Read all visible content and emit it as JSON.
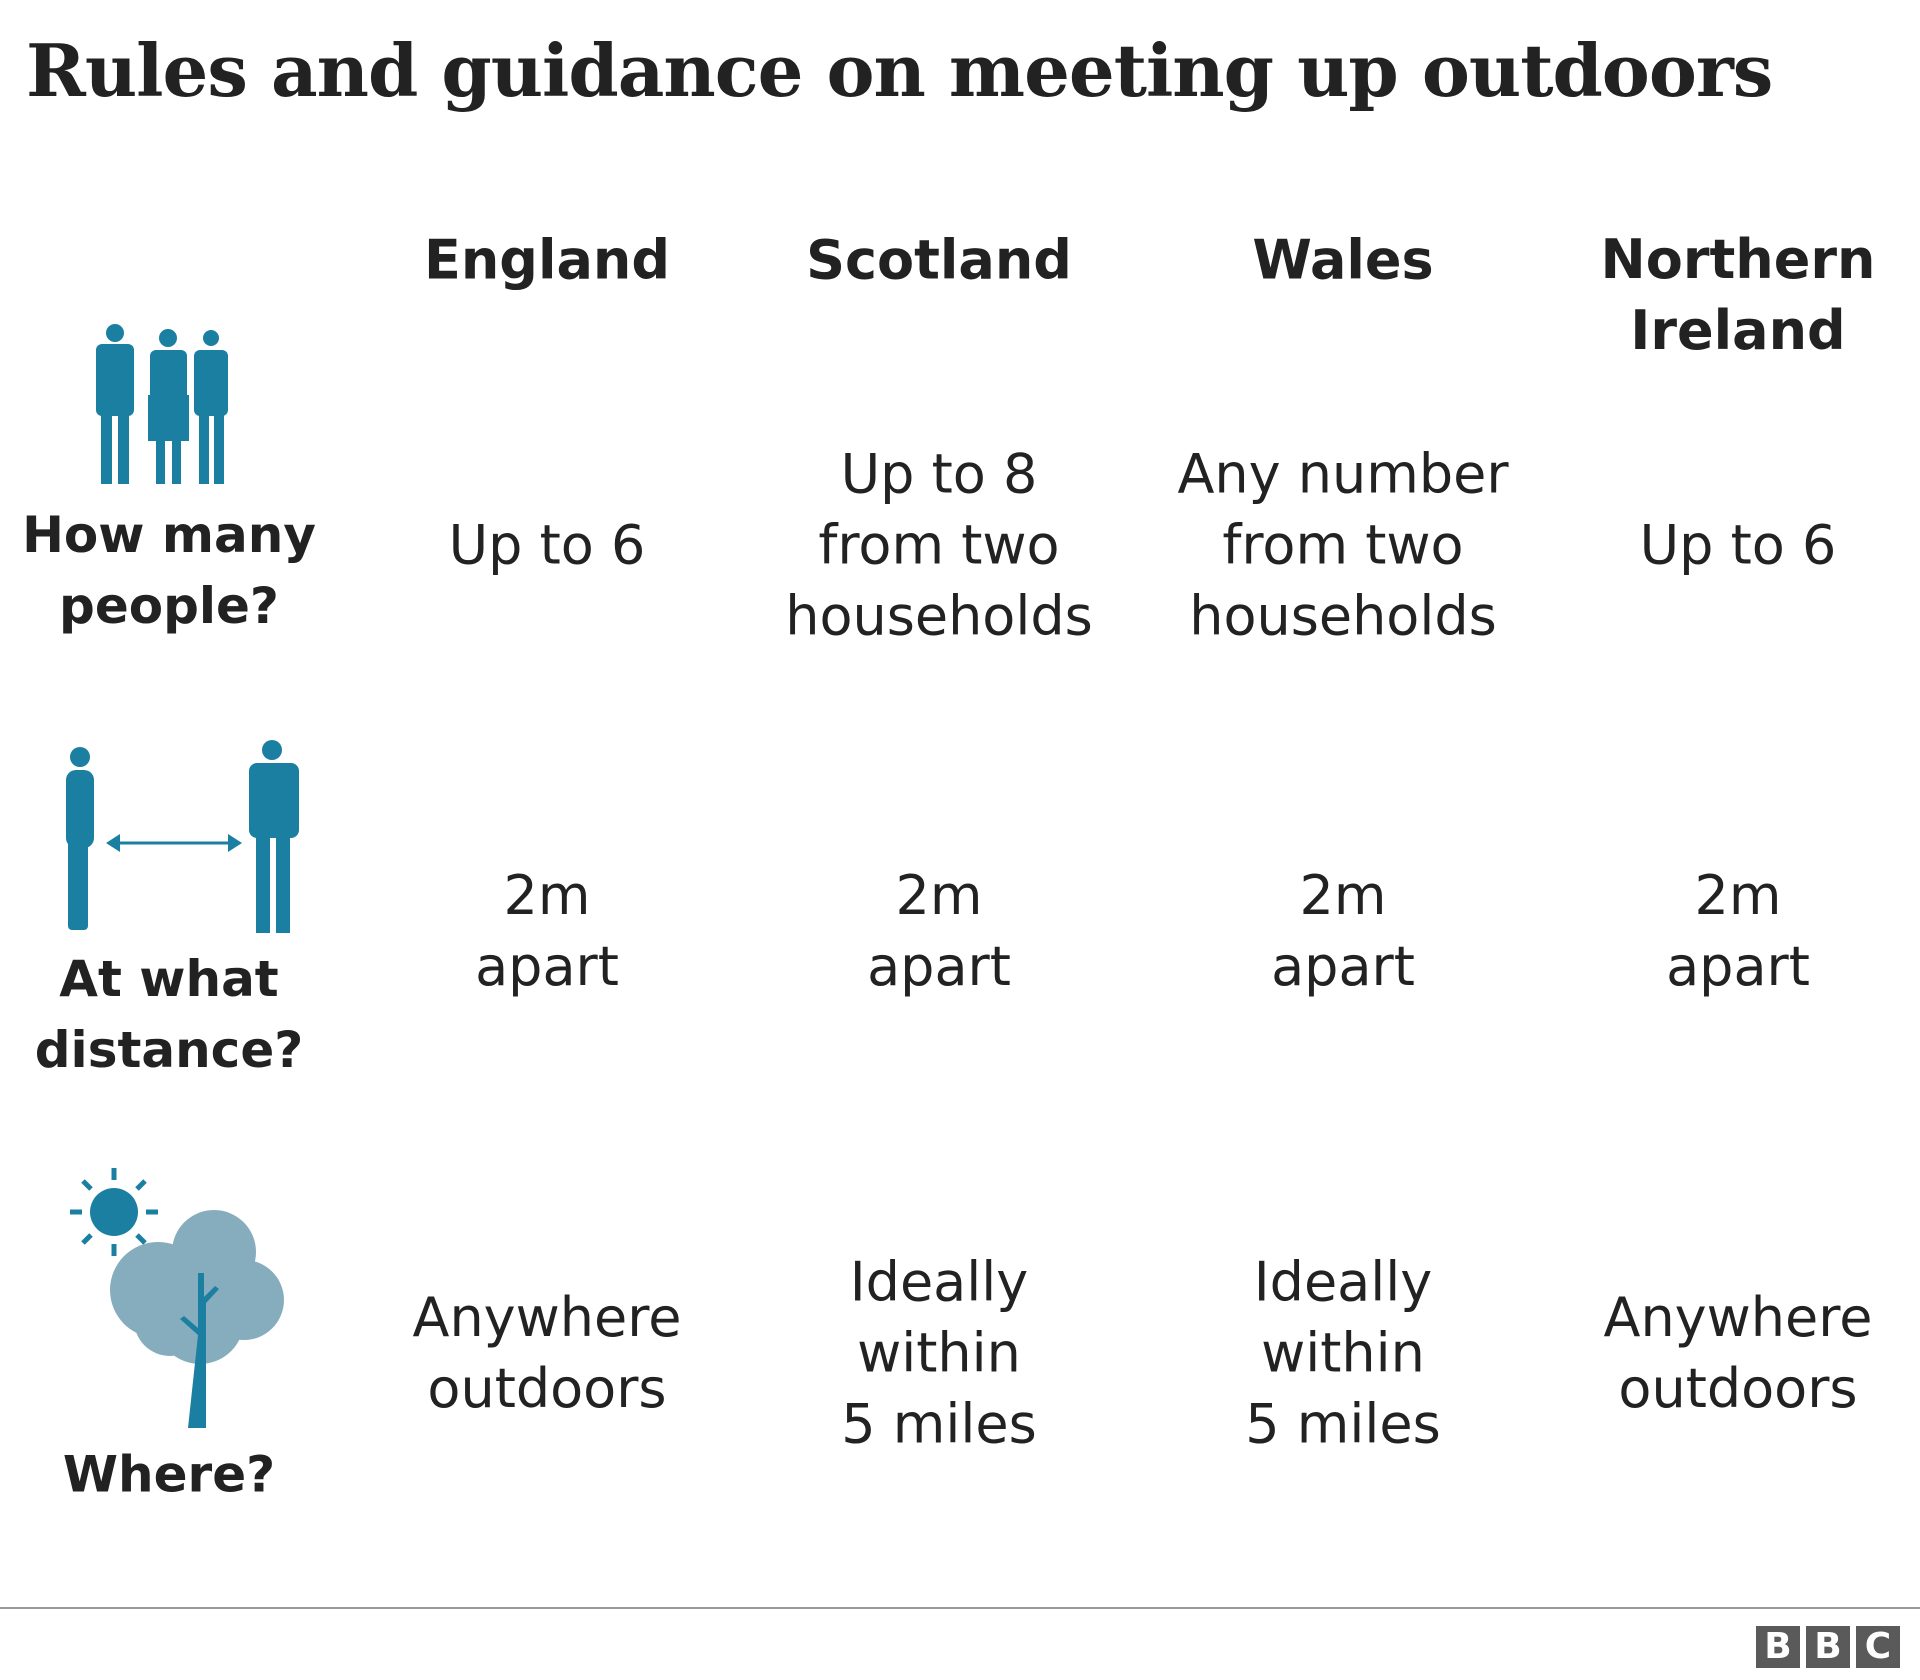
{
  "title": "Rules and guidance on meeting up outdoors",
  "columns": [
    "England",
    "Scotland",
    "Wales",
    [
      "Northern",
      "Ireland"
    ]
  ],
  "rows": [
    {
      "label": [
        "How many",
        "people?"
      ],
      "cells": [
        [
          "Up to 6"
        ],
        [
          "Up to 8",
          "from two",
          "households"
        ],
        [
          "Any number",
          "from two",
          "households"
        ],
        [
          "Up to 6"
        ]
      ]
    },
    {
      "label": [
        "At what",
        "distance?"
      ],
      "cells": [
        [
          "2m",
          "apart"
        ],
        [
          "2m",
          "apart"
        ],
        [
          "2m",
          "apart"
        ],
        [
          "2m",
          "apart"
        ]
      ]
    },
    {
      "label": [
        "Where?"
      ],
      "cells": [
        [
          "Anywhere",
          "outdoors"
        ],
        [
          "Ideally",
          "within",
          "5 miles"
        ],
        [
          "Ideally",
          "within",
          "5 miles"
        ],
        [
          "Anywhere",
          "outdoors"
        ]
      ]
    }
  ],
  "footer": {
    "logo": [
      "B",
      "B",
      "C"
    ]
  }
}
